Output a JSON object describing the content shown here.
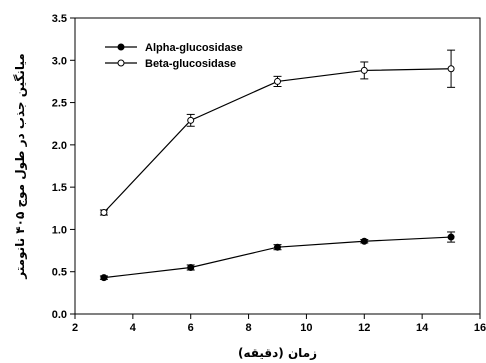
{
  "chart_data": {
    "type": "line",
    "xlabel": "زمان (دقیقه)",
    "ylabel": "میانگین جذب در طول موج ۴۰۵ نانومتر",
    "xlim": [
      2,
      16
    ],
    "ylim": [
      0,
      3.5
    ],
    "x_ticks": [
      2,
      4,
      6,
      8,
      10,
      12,
      14,
      16
    ],
    "y_ticks": [
      "0.0",
      "0.5",
      "1.0",
      "1.5",
      "2.0",
      "2.5",
      "3.0",
      "3.5"
    ],
    "grid": false,
    "legend_position": "top-left",
    "series": [
      {
        "name": "Alpha-glucosidase",
        "marker": "filled-circle",
        "color": "#000000",
        "x": [
          3,
          6,
          9,
          12,
          15
        ],
        "y": [
          0.43,
          0.55,
          0.79,
          0.86,
          0.91
        ],
        "error": [
          0.02,
          0.03,
          0.03,
          0.02,
          0.06
        ]
      },
      {
        "name": "Beta-glucosidase",
        "marker": "open-circle",
        "color": "#000000",
        "x": [
          3,
          6,
          9,
          12,
          15
        ],
        "y": [
          1.2,
          2.29,
          2.75,
          2.88,
          2.9
        ],
        "error": [
          0.03,
          0.07,
          0.06,
          0.1,
          0.22
        ]
      }
    ]
  }
}
